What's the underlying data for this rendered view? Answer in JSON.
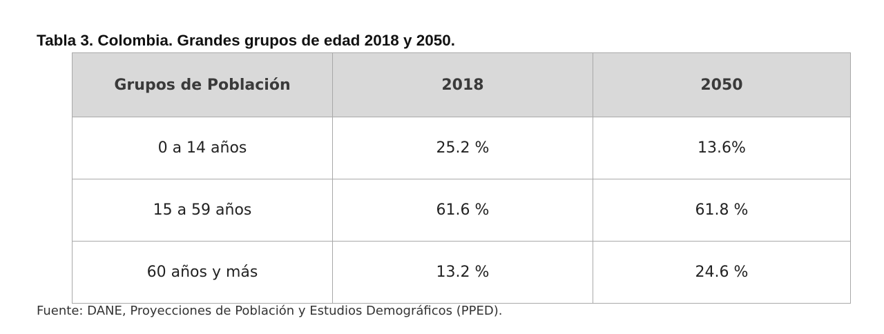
{
  "title": "Tabla 3. Colombia. Grandes grupos de edad 2018 y 2050.",
  "table": {
    "headers": [
      "Grupos de Población",
      "2018",
      "2050"
    ],
    "rows": [
      [
        "0 a 14 años",
        "25.2 %",
        "13.6%"
      ],
      [
        "15 a 59 años",
        "61.6 %",
        "61.8 %"
      ],
      [
        "60 años y más",
        "13.2 %",
        "24.6 %"
      ]
    ]
  },
  "source": "Fuente: DANE, Proyecciones de Población y Estudios Demográficos (PPED)."
}
